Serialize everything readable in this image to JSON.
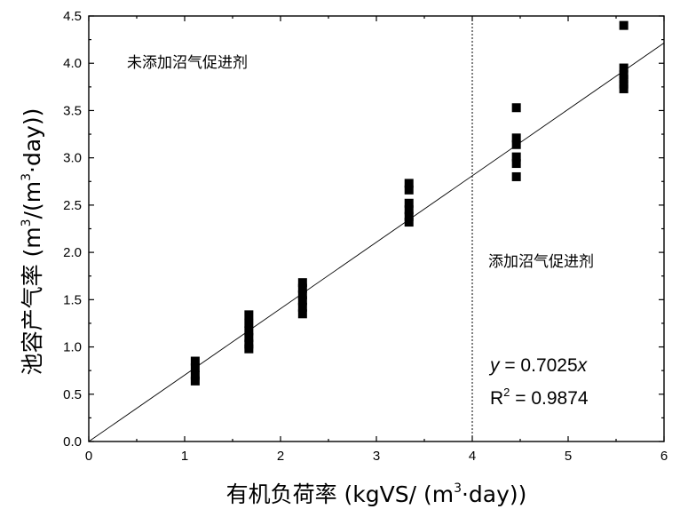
{
  "chart_data": {
    "type": "scatter",
    "xlim": [
      0,
      6
    ],
    "ylim": [
      0,
      4.5
    ],
    "xticks": [
      "0",
      "1",
      "2",
      "3",
      "4",
      "5",
      "6"
    ],
    "yticks": [
      "0.0",
      "0.5",
      "1.0",
      "1.5",
      "2.0",
      "2.5",
      "3.0",
      "3.5",
      "4.0",
      "4.5"
    ],
    "xlabel": {
      "prefix": "有机负荷率 (kgVS/ (m",
      "sup": "3",
      "suffix": "·day))"
    },
    "ylabel": {
      "prefix": "池容产气率 (m",
      "sup": "3",
      "suffix": "/(m",
      "sup2": "3",
      "suffix2": "·day))"
    },
    "points": [
      {
        "x": 1.11,
        "y": 0.85
      },
      {
        "x": 1.11,
        "y": 0.78
      },
      {
        "x": 1.11,
        "y": 0.7
      },
      {
        "x": 1.11,
        "y": 0.64
      },
      {
        "x": 1.67,
        "y": 1.34
      },
      {
        "x": 1.67,
        "y": 1.25
      },
      {
        "x": 1.67,
        "y": 1.17
      },
      {
        "x": 1.67,
        "y": 1.1
      },
      {
        "x": 1.67,
        "y": 1.03
      },
      {
        "x": 1.67,
        "y": 0.98
      },
      {
        "x": 2.23,
        "y": 1.68
      },
      {
        "x": 2.23,
        "y": 1.62
      },
      {
        "x": 2.23,
        "y": 1.55
      },
      {
        "x": 2.23,
        "y": 1.49
      },
      {
        "x": 2.23,
        "y": 1.42
      },
      {
        "x": 2.23,
        "y": 1.35
      },
      {
        "x": 3.34,
        "y": 2.73
      },
      {
        "x": 3.34,
        "y": 2.66
      },
      {
        "x": 3.34,
        "y": 2.52
      },
      {
        "x": 3.34,
        "y": 2.45
      },
      {
        "x": 3.34,
        "y": 2.38
      },
      {
        "x": 3.34,
        "y": 2.32
      },
      {
        "x": 4.46,
        "y": 3.53
      },
      {
        "x": 4.46,
        "y": 3.21
      },
      {
        "x": 4.46,
        "y": 3.14
      },
      {
        "x": 4.46,
        "y": 3.01
      },
      {
        "x": 4.46,
        "y": 2.94
      },
      {
        "x": 4.46,
        "y": 2.8
      },
      {
        "x": 5.58,
        "y": 4.4
      },
      {
        "x": 5.58,
        "y": 3.95
      },
      {
        "x": 5.58,
        "y": 3.88
      },
      {
        "x": 5.58,
        "y": 3.83
      },
      {
        "x": 5.58,
        "y": 3.78
      },
      {
        "x": 5.58,
        "y": 3.73
      }
    ],
    "fit": {
      "slope": 0.7025,
      "x_range": [
        0,
        6
      ],
      "equation": {
        "y": "y",
        "eq": " = 0.7025",
        "x": "x"
      },
      "r2": {
        "r": "R",
        "sup": "2",
        "rest": " = 0.9874"
      }
    },
    "divider_x": 4.0,
    "annotations": {
      "before": "未添加沼气促进剂",
      "after": "添加沼气促进剂"
    },
    "grid": false,
    "legend": "none"
  }
}
